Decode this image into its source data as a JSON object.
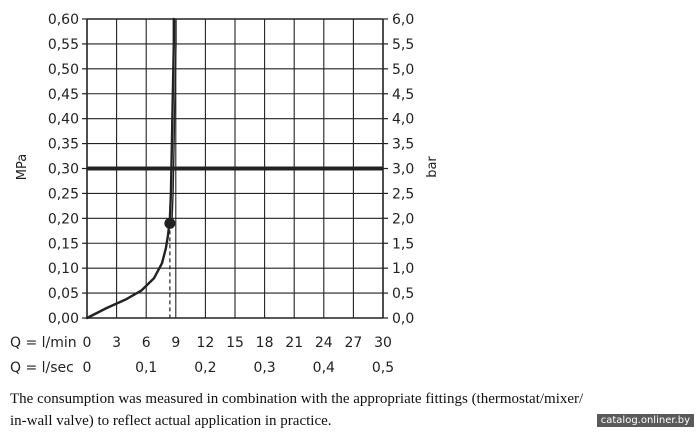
{
  "chart_data": {
    "type": "line",
    "yleft_label": "MPa",
    "yright_label": "bar",
    "yleft_ticks": [
      "0,00",
      "0,05",
      "0,10",
      "0,15",
      "0,20",
      "0,25",
      "0,30",
      "0,35",
      "0,40",
      "0,45",
      "0,50",
      "0,55",
      "0,60"
    ],
    "yright_ticks": [
      "0,0",
      "0,5",
      "1,0",
      "1,5",
      "2,0",
      "2,5",
      "3,0",
      "3,5",
      "4,0",
      "4,5",
      "5,0",
      "5,5",
      "6,0"
    ],
    "ylim": [
      0,
      0.6
    ],
    "xlim": [
      0,
      30
    ],
    "x_lmin_label": "Q = l/min",
    "x_lmin_ticks": [
      "0",
      "3",
      "6",
      "9",
      "12",
      "15",
      "18",
      "21",
      "24",
      "27",
      "30"
    ],
    "x_lsec_label": "Q = l/sec",
    "x_lsec_ticks": [
      "0",
      "0,1",
      "0,2",
      "0,3",
      "0,4",
      "0,5"
    ],
    "grid": true,
    "reference_line_mpa": 0.3,
    "marker": {
      "x": 8.4,
      "y": 0.19
    },
    "series": [
      {
        "x": [
          0,
          2,
          4,
          5.5,
          6.8,
          7.6,
          8.0,
          8.2,
          8.35,
          8.4,
          8.5,
          8.6,
          8.7,
          8.8,
          8.8
        ],
        "y": [
          0,
          0.02,
          0.038,
          0.055,
          0.08,
          0.11,
          0.14,
          0.165,
          0.19,
          0.2,
          0.25,
          0.35,
          0.45,
          0.55,
          0.6
        ]
      }
    ]
  },
  "caption": {
    "line1": "The consumption was measured in combination with the appropriate fittings (thermostat/mixer/",
    "line2": "in-wall valve) to reflect actual application in practice."
  },
  "watermark": "catalog.onliner.by",
  "colors": {
    "ink": "#222222",
    "grid": "#222222"
  }
}
